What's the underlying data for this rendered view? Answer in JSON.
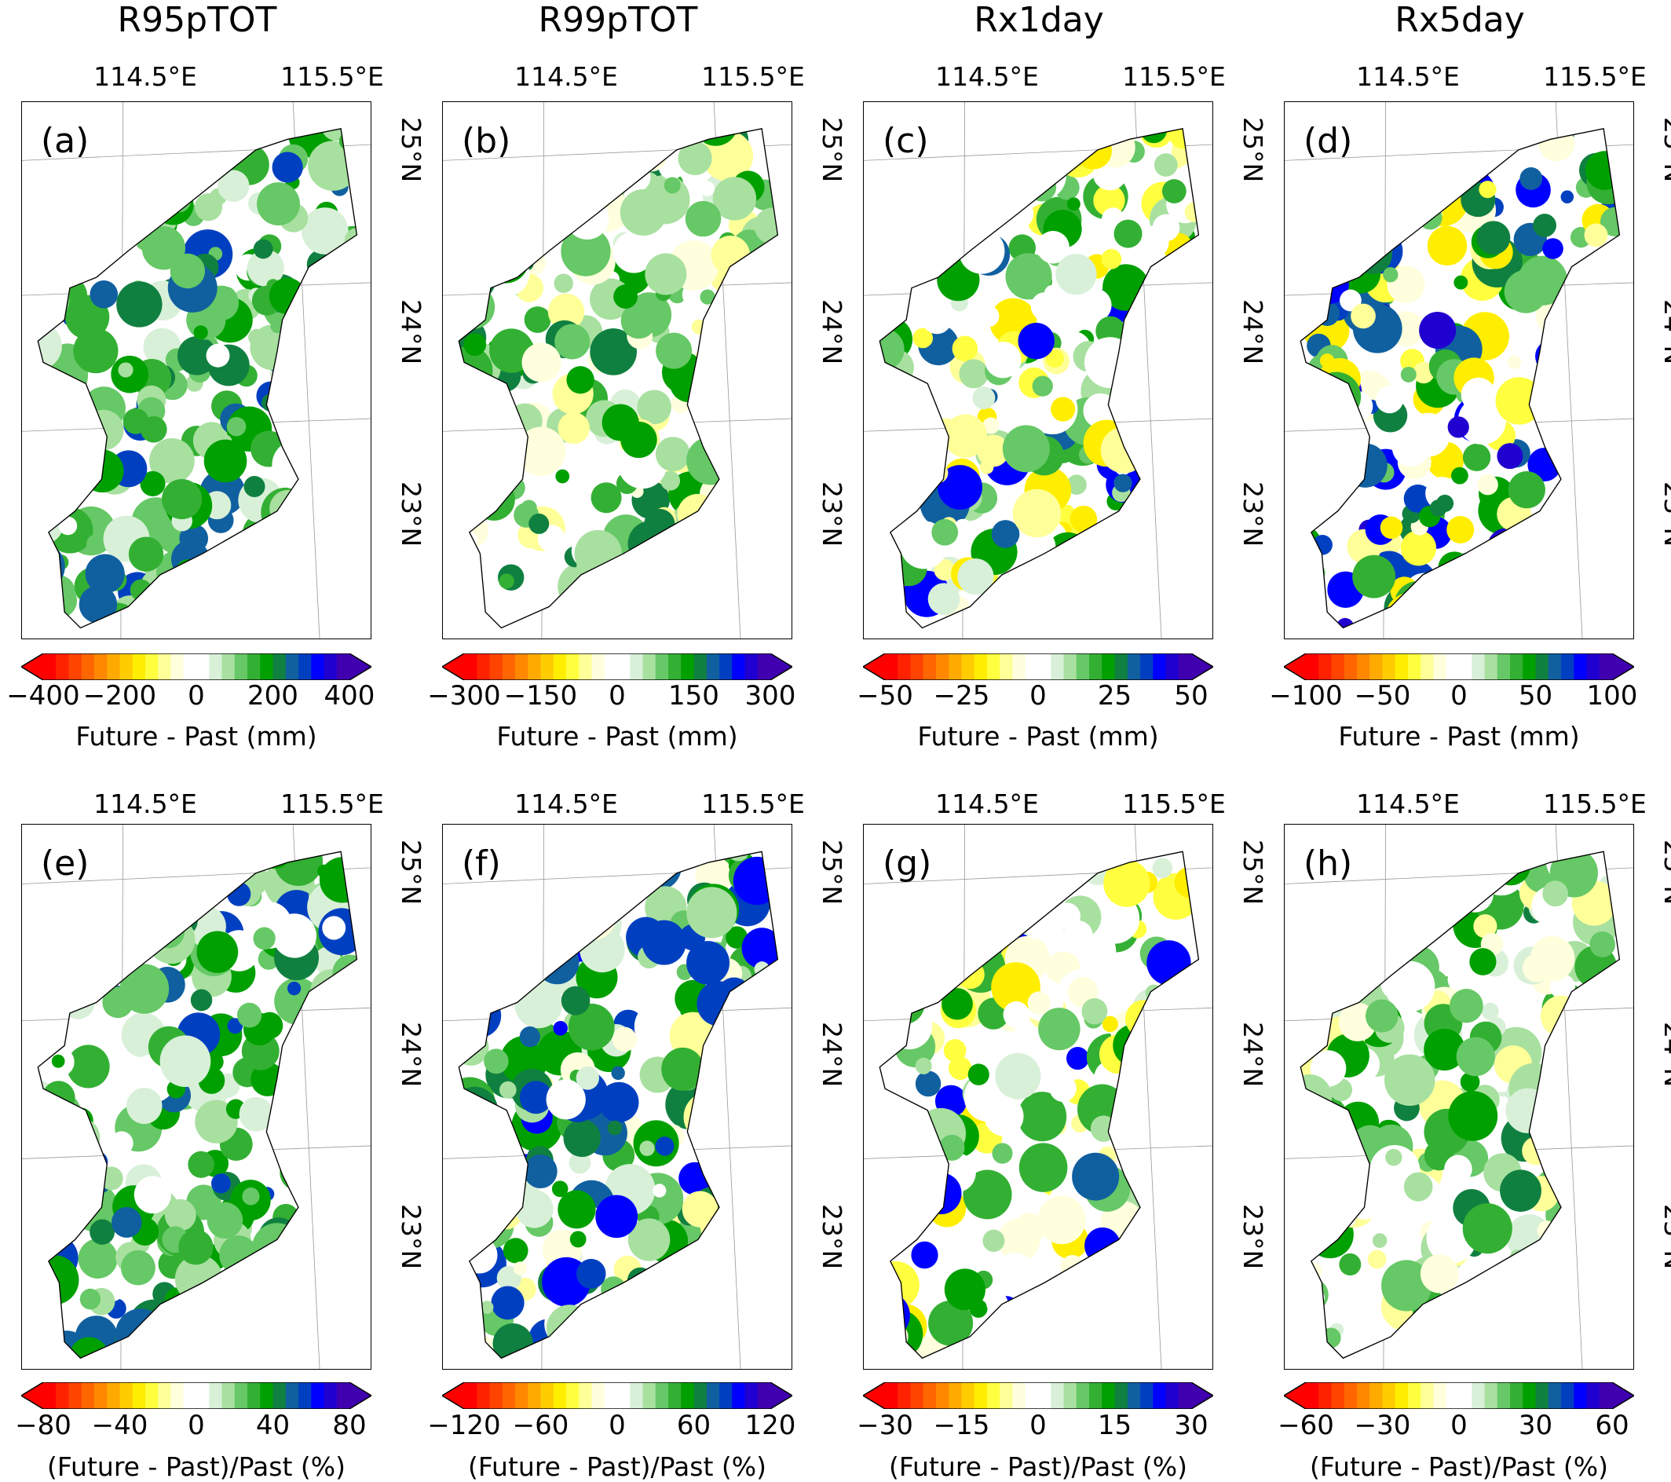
{
  "columns": [
    {
      "title": "R95pTOT"
    },
    {
      "title": "R99pTOT"
    },
    {
      "title": "Rx1day"
    },
    {
      "title": "Rx5day"
    }
  ],
  "lon_labels": [
    "114.5°E",
    "115.5°E"
  ],
  "lat_labels": [
    "25°N",
    "24°N",
    "23°N"
  ],
  "colormap": [
    "#ff0000",
    "#ff2200",
    "#ff4400",
    "#ff6600",
    "#ff8800",
    "#ffaa00",
    "#ffcc00",
    "#ffee00",
    "#ffff40",
    "#ffff99",
    "#ffffdd",
    "#ffffff",
    "#ffffff",
    "#d8f0d8",
    "#a8e0a0",
    "#66c866",
    "#33b033",
    "#00a000",
    "#108040",
    "#1060a0",
    "#0040c0",
    "#0000ff",
    "#2000d0",
    "#4000b0"
  ],
  "panels": [
    {
      "label": "(a)",
      "ticks": [
        "−400",
        "−200",
        "0",
        "200",
        "400"
      ],
      "cb_label": "Future - Past (mm)",
      "bias": "green"
    },
    {
      "label": "(b)",
      "ticks": [
        "−300",
        "−150",
        "0",
        "150",
        "300"
      ],
      "cb_label": "Future - Past (mm)",
      "bias": "green-light"
    },
    {
      "label": "(c)",
      "ticks": [
        "−50",
        "−25",
        "0",
        "25",
        "50"
      ],
      "cb_label": "Future - Past (mm)",
      "bias": "mixed"
    },
    {
      "label": "(d)",
      "ticks": [
        "−100",
        "−50",
        "0",
        "50",
        "100"
      ],
      "cb_label": "Future - Past (mm)",
      "bias": "blue-yellow"
    },
    {
      "label": "(e)",
      "ticks": [
        "−80",
        "−40",
        "0",
        "40",
        "80"
      ],
      "cb_label": "(Future - Past)/Past (%)",
      "bias": "green"
    },
    {
      "label": "(f)",
      "ticks": [
        "−120",
        "−60",
        "0",
        "60",
        "120"
      ],
      "cb_label": "(Future - Past)/Past (%)",
      "bias": "green-blue"
    },
    {
      "label": "(g)",
      "ticks": [
        "−30",
        "−15",
        "0",
        "15",
        "30"
      ],
      "cb_label": "(Future - Past)/Past (%)",
      "bias": "mixed"
    },
    {
      "label": "(h)",
      "ticks": [
        "−60",
        "−30",
        "0",
        "30",
        "60"
      ],
      "cb_label": "(Future - Past)/Past (%)",
      "bias": "green-light"
    }
  ]
}
